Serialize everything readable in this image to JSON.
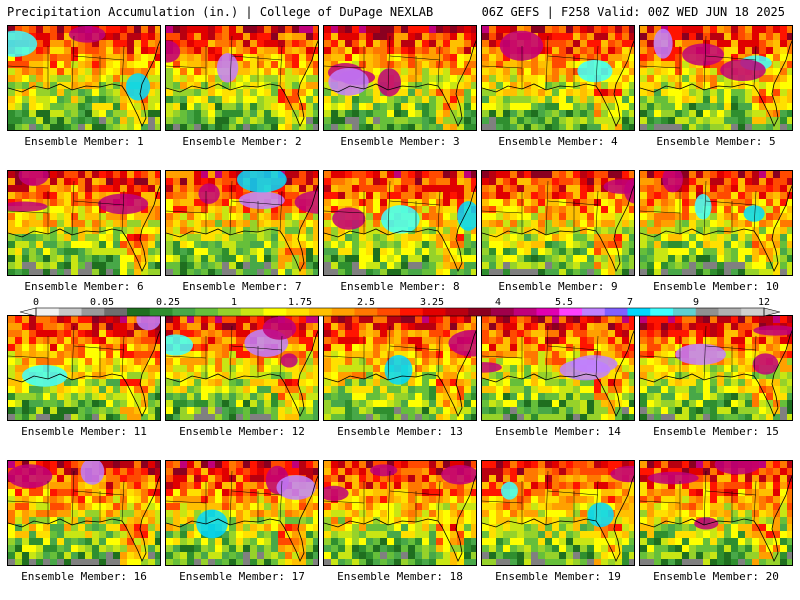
{
  "header": {
    "left": "Precipitation Accumulation (in.) | College of DuPage NEXLAB",
    "right": "06Z GEFS | F258 Valid: 00Z WED JUN 18 2025"
  },
  "colorbar": {
    "tick_labels": [
      "0",
      "0.05",
      "0.25",
      "1",
      "1.75",
      "2.5",
      "3.25",
      "4",
      "5.5",
      "7",
      "9",
      "12"
    ],
    "colors": [
      "#f2f2f2",
      "#c8c8c8",
      "#9a9a9a",
      "#6e6e6e",
      "#1f6f1f",
      "#2f8f2f",
      "#48a848",
      "#66bf3a",
      "#96d22a",
      "#c8e614",
      "#ffff00",
      "#ffe000",
      "#ffc000",
      "#ffa000",
      "#ff7800",
      "#ff4a00",
      "#ff1400",
      "#e00000",
      "#b80010",
      "#8a0020",
      "#a0004a",
      "#c0007a",
      "#e000b0",
      "#ff40ff",
      "#c080ff",
      "#8060ff",
      "#00d8ff",
      "#40ffff",
      "#60d0d0",
      "#909090",
      "#b0b0b0",
      "#d0d0d0"
    ]
  },
  "members": [
    {
      "label": "Ensemble Member: 1",
      "seed": 11
    },
    {
      "label": "Ensemble Member: 2",
      "seed": 23
    },
    {
      "label": "Ensemble Member: 3",
      "seed": 37
    },
    {
      "label": "Ensemble Member: 4",
      "seed": 41
    },
    {
      "label": "Ensemble Member: 5",
      "seed": 53
    },
    {
      "label": "Ensemble Member: 6",
      "seed": 67
    },
    {
      "label": "Ensemble Member: 7",
      "seed": 71
    },
    {
      "label": "Ensemble Member: 8",
      "seed": 83
    },
    {
      "label": "Ensemble Member: 9",
      "seed": 97
    },
    {
      "label": "Ensemble Member: 10",
      "seed": 101
    },
    {
      "label": "Ensemble Member: 11",
      "seed": 113
    },
    {
      "label": "Ensemble Member: 12",
      "seed": 127
    },
    {
      "label": "Ensemble Member: 13",
      "seed": 131
    },
    {
      "label": "Ensemble Member: 14",
      "seed": 149
    },
    {
      "label": "Ensemble Member: 15",
      "seed": 157
    },
    {
      "label": "Ensemble Member: 16",
      "seed": 163
    },
    {
      "label": "Ensemble Member: 17",
      "seed": 173
    },
    {
      "label": "Ensemble Member: 18",
      "seed": 181
    },
    {
      "label": "Ensemble Member: 19",
      "seed": 191
    },
    {
      "label": "Ensemble Member: 20",
      "seed": 199
    }
  ]
}
